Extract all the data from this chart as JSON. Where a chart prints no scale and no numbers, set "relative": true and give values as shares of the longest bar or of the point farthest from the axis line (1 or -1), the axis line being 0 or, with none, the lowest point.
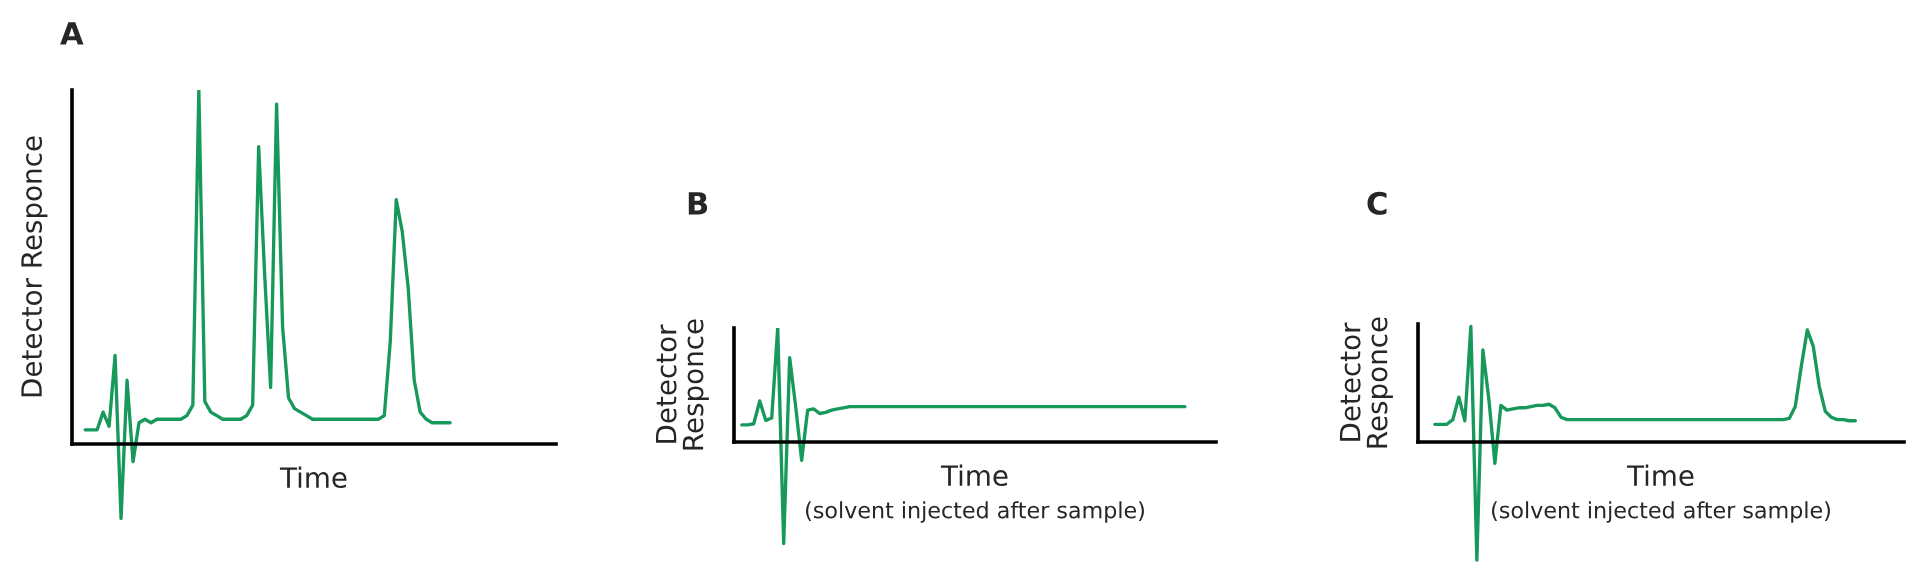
{
  "chart_data": [
    {
      "type": "line",
      "title": "A",
      "xlabel": "Time",
      "ylabel": "Detector Responce",
      "relative": true,
      "categories": [
        null,
        null,
        null,
        null,
        null,
        null,
        null,
        null,
        null,
        null,
        null,
        null,
        null,
        null,
        null,
        null,
        null,
        null,
        null,
        null,
        null,
        null,
        null,
        null,
        null,
        null,
        null,
        null,
        null,
        null,
        null,
        null,
        null,
        null,
        null,
        null,
        null,
        null,
        null,
        null,
        null,
        null,
        null,
        null,
        null,
        null,
        null,
        null,
        null,
        null,
        null,
        null,
        null,
        null,
        null,
        null,
        null,
        null,
        null,
        null,
        null,
        null
      ],
      "series": [
        {
          "color": "#16995a",
          "values": [
            0.04,
            0.04,
            0.04,
            0.09,
            0.05,
            0.25,
            -0.21,
            0.18,
            -0.05,
            0.06,
            0.07,
            0.06,
            0.07,
            0.07,
            0.07,
            0.07,
            0.07,
            0.08,
            0.11,
            1,
            0.12,
            0.09,
            0.08,
            0.07,
            0.07,
            0.07,
            0.07,
            0.08,
            0.11,
            0.84,
            0.48,
            0.16,
            0.96,
            0.33,
            0.13,
            0.1,
            0.09,
            0.08,
            0.07,
            0.07,
            0.07,
            0.07,
            0.07,
            0.07,
            0.07,
            0.07,
            0.07,
            0.07,
            0.07,
            0.07,
            0.08,
            0.29,
            0.69,
            0.6,
            0.44,
            0.18,
            0.09,
            0.07,
            0.06,
            0.06,
            0.06,
            0.06
          ]
        }
      ]
    },
    {
      "type": "line",
      "title": "B",
      "xlabel": "Time",
      "ylabel": "Detector Responce",
      "relative": true,
      "annotations": [
        "(solvent injected after sample)"
      ],
      "categories": [
        null,
        null,
        null,
        null,
        null,
        null,
        null,
        null,
        null,
        null,
        null,
        null,
        null,
        null,
        null,
        null,
        null,
        null,
        null,
        null,
        null,
        null,
        null,
        null,
        null,
        null,
        null,
        null,
        null,
        null,
        null,
        null,
        null,
        null,
        null,
        null,
        null,
        null,
        null,
        null,
        null,
        null,
        null,
        null,
        null,
        null,
        null,
        null,
        null,
        null,
        null,
        null,
        null,
        null,
        null,
        null,
        null,
        null,
        null,
        null,
        null,
        null,
        null,
        null,
        null,
        null,
        null,
        null,
        null,
        null,
        null,
        null,
        null,
        null,
        null
      ],
      "series": [
        {
          "color": "#16995a",
          "values": [
            0.15,
            0.15,
            0.16,
            0.36,
            0.19,
            0.21,
            1,
            -0.89,
            0.74,
            0.31,
            -0.16,
            0.28,
            0.29,
            0.25,
            0.26,
            0.28,
            0.29,
            0.3,
            0.31,
            0.31,
            0.31,
            0.31,
            0.31,
            0.31,
            0.31,
            0.31,
            0.31,
            0.31,
            0.31,
            0.31,
            0.31,
            0.31,
            0.31,
            0.31,
            0.31,
            0.31,
            0.31,
            0.31,
            0.31,
            0.31,
            0.31,
            0.31,
            0.31,
            0.31,
            0.31,
            0.31,
            0.31,
            0.31,
            0.31,
            0.31,
            0.31,
            0.31,
            0.31,
            0.31,
            0.31,
            0.31,
            0.31,
            0.31,
            0.31,
            0.31,
            0.31,
            0.31,
            0.31,
            0.31,
            0.31,
            0.31,
            0.31,
            0.31,
            0.31,
            0.31,
            0.31,
            0.31,
            0.31,
            0.31,
            0.31
          ]
        }
      ]
    },
    {
      "type": "line",
      "title": "C",
      "xlabel": "Time",
      "ylabel": "Detector Responce",
      "relative": true,
      "annotations": [
        "(solvent injected after sample)"
      ],
      "categories": [
        null,
        null,
        null,
        null,
        null,
        null,
        null,
        null,
        null,
        null,
        null,
        null,
        null,
        null,
        null,
        null,
        null,
        null,
        null,
        null,
        null,
        null,
        null,
        null,
        null,
        null,
        null,
        null,
        null,
        null,
        null,
        null,
        null,
        null,
        null,
        null,
        null,
        null,
        null,
        null,
        null,
        null,
        null,
        null,
        null,
        null,
        null,
        null,
        null,
        null,
        null,
        null,
        null,
        null,
        null,
        null,
        null,
        null,
        null,
        null,
        null,
        null,
        null,
        null,
        null,
        null,
        null,
        null,
        null,
        null,
        null
      ],
      "series": [
        {
          "color": "#16995a",
          "values": [
            0.15,
            0.15,
            0.15,
            0.19,
            0.38,
            0.18,
            0.98,
            -1,
            0.78,
            0.36,
            -0.18,
            0.31,
            0.27,
            0.28,
            0.29,
            0.29,
            0.3,
            0.31,
            0.31,
            0.32,
            0.29,
            0.21,
            0.19,
            0.19,
            0.19,
            0.19,
            0.19,
            0.19,
            0.19,
            0.19,
            0.19,
            0.19,
            0.19,
            0.19,
            0.19,
            0.19,
            0.19,
            0.19,
            0.19,
            0.19,
            0.19,
            0.19,
            0.19,
            0.19,
            0.19,
            0.19,
            0.19,
            0.19,
            0.19,
            0.19,
            0.19,
            0.19,
            0.19,
            0.19,
            0.19,
            0.19,
            0.19,
            0.19,
            0.19,
            0.2,
            0.3,
            0.64,
            0.95,
            0.81,
            0.47,
            0.26,
            0.21,
            0.19,
            0.19,
            0.18,
            0.18
          ]
        }
      ]
    }
  ]
}
